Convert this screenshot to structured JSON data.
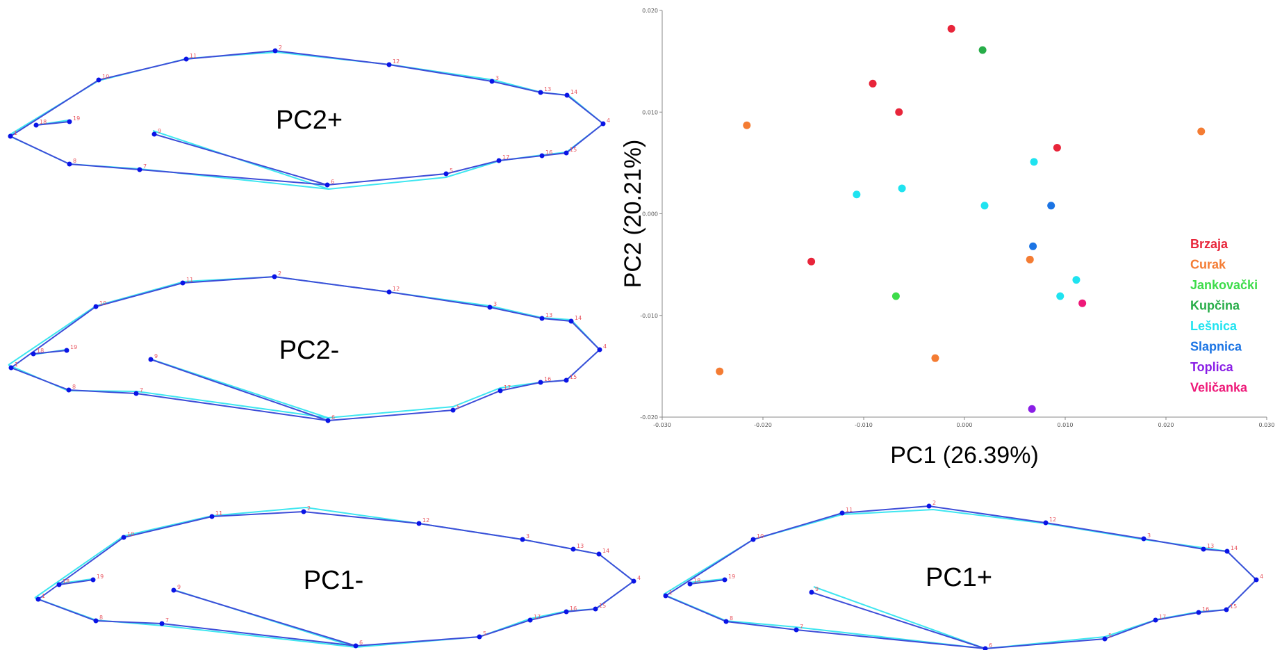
{
  "wing_panels": [
    {
      "id": "pc2-plus",
      "title": "PC2+",
      "series": [
        {
          "color": "#3ee6f0",
          "points": [
            [
              12,
              195
            ],
            [
              52,
              180
            ],
            [
              98,
              173
            ],
            [
              220,
              188
            ],
            [
              142,
              116
            ],
            [
              270,
              84
            ],
            [
              398,
              75
            ],
            [
              562,
              93
            ],
            [
              710,
              115
            ],
            [
              780,
              133
            ],
            [
              818,
              137
            ],
            [
              868,
              178
            ],
            [
              815,
              219
            ],
            [
              780,
              223
            ],
            [
              720,
              231
            ],
            [
              642,
              255
            ],
            [
              473,
              272
            ],
            [
              202,
              243
            ],
            [
              100,
              236
            ]
          ]
        },
        {
          "color": "#3d4dd8",
          "points": [
            [
              15,
              196
            ],
            [
              52,
              180
            ],
            [
              100,
              175
            ],
            [
              222,
              193
            ],
            [
              142,
              115
            ],
            [
              268,
              85
            ],
            [
              396,
              73
            ],
            [
              560,
              93
            ],
            [
              708,
              117
            ],
            [
              778,
              133
            ],
            [
              816,
              137
            ],
            [
              868,
              178
            ],
            [
              815,
              220
            ],
            [
              780,
              224
            ],
            [
              718,
              231
            ],
            [
              642,
              250
            ],
            [
              471,
              266
            ],
            [
              201,
              244
            ],
            [
              100,
              236
            ]
          ]
        }
      ],
      "labels": [
        "1",
        "18",
        "19",
        "9",
        "10",
        "11",
        "2",
        "12",
        "3",
        "13",
        "14",
        "4",
        "15",
        "16",
        "17",
        "5",
        "6",
        "7",
        "8"
      ]
    },
    {
      "id": "pc2-minus",
      "title": "PC2-",
      "series": [
        {
          "color": "#3ee6f0",
          "points": [
            [
              12,
              525
            ],
            [
              48,
              510
            ],
            [
              95,
              503
            ],
            [
              215,
              516
            ],
            [
              138,
              440
            ],
            [
              265,
              405
            ],
            [
              395,
              398
            ],
            [
              560,
              420
            ],
            [
              705,
              440
            ],
            [
              780,
              457
            ],
            [
              822,
              460
            ],
            [
              863,
              503
            ],
            [
              815,
              547
            ],
            [
              778,
              550
            ],
            [
              720,
              558
            ],
            [
              652,
              585
            ],
            [
              472,
              601
            ],
            [
              197,
              563
            ],
            [
              98,
              562
            ]
          ]
        },
        {
          "color": "#3d4dd8",
          "points": [
            [
              16,
              529
            ],
            [
              48,
              509
            ],
            [
              96,
              504
            ],
            [
              217,
              517
            ],
            [
              138,
              441
            ],
            [
              263,
              407
            ],
            [
              395,
              398
            ],
            [
              560,
              420
            ],
            [
              705,
              442
            ],
            [
              780,
              458
            ],
            [
              822,
              462
            ],
            [
              863,
              503
            ],
            [
              815,
              547
            ],
            [
              778,
              550
            ],
            [
              720,
              562
            ],
            [
              652,
              590
            ],
            [
              472,
              605
            ],
            [
              196,
              566
            ],
            [
              99,
              561
            ]
          ]
        }
      ],
      "labels": [
        "1",
        "18",
        "19",
        "9",
        "10",
        "11",
        "2",
        "12",
        "3",
        "13",
        "14",
        "4",
        "15",
        "16",
        "17",
        "5",
        "6",
        "7",
        "8"
      ]
    },
    {
      "id": "pc1-minus",
      "title": "PC1-",
      "series": [
        {
          "color": "#3ee6f0",
          "points": [
            [
              50,
              860
            ],
            [
              82,
              840
            ],
            [
              132,
              833
            ],
            [
              255,
              850
            ],
            [
              178,
              771
            ],
            [
              305,
              742
            ],
            [
              440,
              730
            ],
            [
              603,
              753
            ],
            [
              752,
              776
            ],
            [
              825,
              790
            ],
            [
              862,
              797
            ],
            [
              912,
              836
            ],
            [
              857,
              876
            ],
            [
              815,
              879
            ],
            [
              763,
              890
            ],
            [
              690,
              916
            ],
            [
              512,
              931
            ],
            [
              234,
              900
            ],
            [
              138,
              892
            ]
          ]
        },
        {
          "color": "#3d4dd8",
          "points": [
            [
              55,
              862
            ],
            [
              85,
              841
            ],
            [
              134,
              834
            ],
            [
              250,
              849
            ],
            [
              178,
              773
            ],
            [
              305,
              743
            ],
            [
              437,
              736
            ],
            [
              603,
              753
            ],
            [
              752,
              776
            ],
            [
              825,
              790
            ],
            [
              862,
              797
            ],
            [
              912,
              836
            ],
            [
              857,
              876
            ],
            [
              815,
              880
            ],
            [
              763,
              892
            ],
            [
              690,
              916
            ],
            [
              512,
              929
            ],
            [
              233,
              897
            ],
            [
              138,
              893
            ]
          ]
        }
      ],
      "labels": [
        "1",
        "18",
        "19",
        "9",
        "10",
        "11",
        "2",
        "12",
        "3",
        "13",
        "14",
        "4",
        "15",
        "16",
        "17",
        "5",
        "6",
        "7",
        "8"
      ]
    },
    {
      "id": "pc1-plus",
      "title": "PC1+",
      "series": [
        {
          "color": "#3ee6f0",
          "points": [
            [
              955,
              855
            ],
            [
              991,
              838
            ],
            [
              1041,
              833
            ],
            [
              1171,
              844
            ],
            [
              1084,
              776
            ],
            [
              1212,
              740
            ],
            [
              1343,
              733
            ],
            [
              1505,
              753
            ],
            [
              1646,
              776
            ],
            [
              1732,
              788
            ],
            [
              1766,
              793
            ],
            [
              1808,
              834
            ],
            [
              1765,
              877
            ],
            [
              1725,
              880
            ],
            [
              1665,
              891
            ],
            [
              1590,
              916
            ],
            [
              1418,
              933
            ],
            [
              1145,
              902
            ],
            [
              1045,
              893
            ]
          ]
        },
        {
          "color": "#3d4dd8",
          "points": [
            [
              958,
              857
            ],
            [
              993,
              840
            ],
            [
              1043,
              834
            ],
            [
              1168,
              852
            ],
            [
              1084,
              776
            ],
            [
              1212,
              738
            ],
            [
              1337,
              728
            ],
            [
              1505,
              752
            ],
            [
              1646,
              775
            ],
            [
              1732,
              790
            ],
            [
              1766,
              793
            ],
            [
              1808,
              834
            ],
            [
              1765,
              877
            ],
            [
              1725,
              881
            ],
            [
              1663,
              892
            ],
            [
              1590,
              919
            ],
            [
              1418,
              933
            ],
            [
              1146,
              906
            ],
            [
              1045,
              894
            ]
          ]
        }
      ],
      "labels": [
        "1",
        "18",
        "19",
        "9",
        "10",
        "11",
        "2",
        "12",
        "3",
        "13",
        "14",
        "4",
        "15",
        "16",
        "17",
        "5",
        "6",
        "7",
        "8"
      ]
    }
  ],
  "chart_data": {
    "type": "scatter",
    "xlabel": "PC1 (26.39%)",
    "ylabel": "PC2 (20.21%)",
    "xlim": [
      -0.03,
      0.03
    ],
    "ylim": [
      -0.02,
      0.02
    ],
    "xticks": [
      "-0.030",
      "-0.020",
      "-0.010",
      "0.000",
      "0.010",
      "0.020",
      "0.030"
    ],
    "yticks": [
      "0.020",
      "0.010",
      "0.000",
      "-0.010",
      "-0.020"
    ],
    "legend_position": "right",
    "series": [
      {
        "name": "Brzaja",
        "color": "#e8253a",
        "points": [
          [
            -0.0013,
            0.0182
          ],
          [
            -0.0091,
            0.0128
          ],
          [
            -0.0065,
            0.01
          ],
          [
            0.0092,
            0.0065
          ],
          [
            -0.0152,
            -0.0047
          ]
        ]
      },
      {
        "name": "Curak",
        "color": "#f47c33",
        "points": [
          [
            -0.0216,
            0.0087
          ],
          [
            0.0235,
            0.0081
          ],
          [
            0.0065,
            -0.0045
          ],
          [
            -0.0029,
            -0.0142
          ],
          [
            -0.0243,
            -0.0155
          ]
        ]
      },
      {
        "name": "Jankovački",
        "color": "#3ddc4a",
        "points": [
          [
            -0.0068,
            -0.0081
          ]
        ]
      },
      {
        "name": "Kupčina",
        "color": "#27ad48",
        "points": [
          [
            0.0018,
            0.0161
          ]
        ]
      },
      {
        "name": "Lešnica",
        "color": "#1fe3f0",
        "points": [
          [
            0.0069,
            0.0051
          ],
          [
            -0.0107,
            0.0019
          ],
          [
            -0.0062,
            0.0025
          ],
          [
            0.002,
            0.0008
          ],
          [
            0.0111,
            -0.0065
          ],
          [
            0.0095,
            -0.0081
          ]
        ]
      },
      {
        "name": "Slapnica",
        "color": "#1b74e4",
        "points": [
          [
            0.0086,
            0.0008
          ],
          [
            0.0068,
            -0.0032
          ]
        ]
      },
      {
        "name": "Toplica",
        "color": "#8a1ee6",
        "points": [
          [
            0.0067,
            -0.0192
          ]
        ]
      },
      {
        "name": "Veličanka",
        "color": "#ee1878",
        "points": [
          [
            0.0117,
            -0.0088
          ]
        ]
      }
    ]
  }
}
